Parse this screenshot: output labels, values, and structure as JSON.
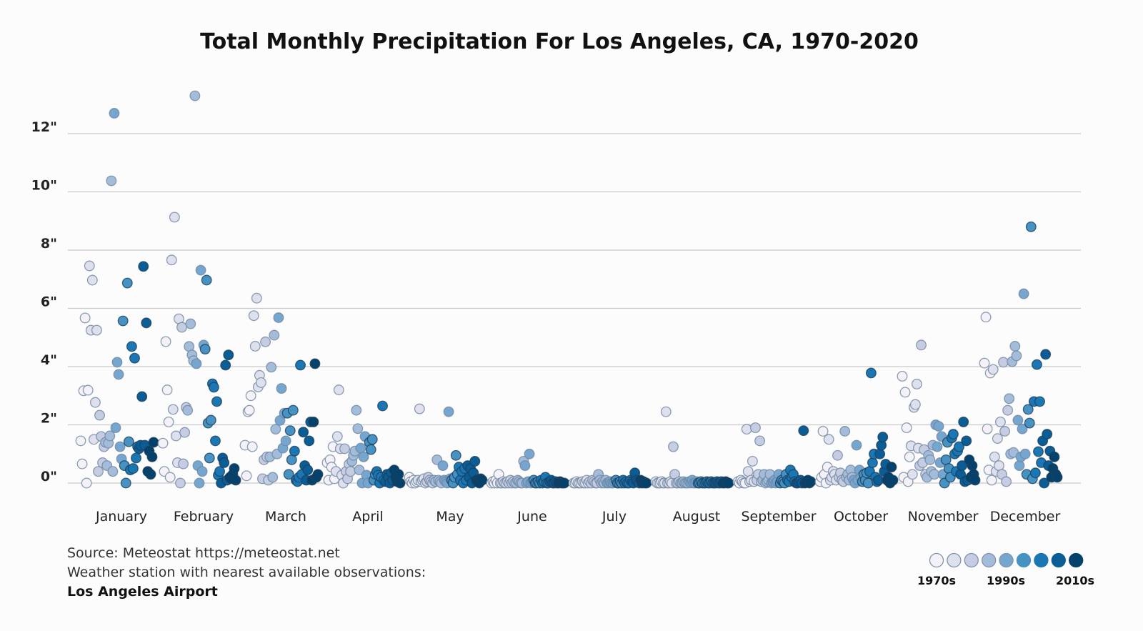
{
  "chart_data": {
    "type": "scatter",
    "title": "Total Monthly Precipitation For Los Angeles, CA, 1970-2020",
    "ylim": [
      0,
      13.5
    ],
    "yticks": [
      0,
      2,
      4,
      6,
      8,
      10,
      12
    ],
    "ytick_labels": [
      "0\"",
      "2\"",
      "4\"",
      "6\"",
      "8\"",
      "10\"",
      "12\""
    ],
    "grid": true,
    "first_year": 1970,
    "categories": [
      "January",
      "February",
      "March",
      "April",
      "May",
      "June",
      "July",
      "August",
      "September",
      "October",
      "November",
      "December"
    ],
    "series": [
      {
        "values": [
          1.45,
          0.66,
          3.17,
          5.67,
          0.0,
          3.19,
          7.46,
          5.25,
          6.97,
          1.5,
          2.77,
          5.25,
          0.4,
          2.33,
          1.6,
          0.7,
          1.25,
          1.4,
          0.6,
          1.37,
          1.62,
          10.38,
          0.4,
          12.7,
          1.9,
          4.15,
          3.73,
          1.25,
          0.83,
          5.57,
          0.6,
          0.0,
          6.87,
          1.42,
          0.45,
          4.69,
          0.5,
          4.29,
          0.86,
          1.25,
          1.18,
          1.3,
          2.97,
          7.44,
          1.3,
          5.5,
          0.4,
          1.1,
          0.3,
          0.9,
          1.4
        ]
      },
      {
        "values": [
          1.37,
          0.4,
          4.86,
          3.2,
          2.1,
          0.2,
          7.66,
          2.53,
          9.13,
          1.62,
          0.7,
          5.64,
          0.0,
          5.35,
          0.66,
          1.74,
          2.6,
          2.5,
          4.69,
          5.47,
          4.4,
          4.2,
          13.3,
          4.1,
          0.6,
          0.0,
          7.31,
          0.4,
          4.74,
          4.6,
          6.97,
          2.06,
          0.86,
          2.16,
          3.41,
          3.29,
          1.45,
          2.8,
          0.27,
          0.4,
          0.0,
          0.86,
          0.7,
          4.05,
          0.1,
          4.4,
          0.2,
          0.15,
          0.3,
          0.5,
          0.1
        ]
      },
      {
        "values": [
          1.3,
          0.25,
          2.45,
          2.5,
          3.0,
          1.25,
          5.75,
          4.7,
          6.35,
          3.3,
          3.7,
          3.45,
          0.15,
          0.8,
          4.85,
          0.9,
          0.1,
          0.9,
          3.98,
          0.2,
          5.08,
          1.85,
          1.0,
          5.68,
          2.15,
          3.25,
          1.2,
          2.4,
          1.45,
          2.4,
          0.3,
          1.8,
          0.8,
          2.5,
          1.1,
          0.1,
          0.05,
          0.2,
          4.05,
          0.3,
          1.75,
          0.6,
          0.1,
          0.45,
          1.45,
          2.1,
          0.1,
          2.1,
          4.1,
          0.2,
          0.3
        ]
      },
      {
        "values": [
          0.7,
          0.1,
          0.8,
          0.55,
          1.25,
          0.15,
          0.4,
          1.6,
          3.2,
          1.18,
          0.27,
          0.0,
          1.18,
          0.4,
          0.15,
          0.65,
          0.4,
          0.75,
          0.95,
          1.1,
          2.5,
          1.87,
          0.45,
          1.2,
          0.0,
          0.9,
          1.6,
          0.27,
          0.0,
          1.4,
          1.15,
          1.5,
          0.1,
          0.3,
          0.4,
          0.27,
          0.0,
          0.2,
          2.65,
          0.1,
          0.05,
          0.3,
          0.2,
          0.0,
          0.35,
          0.1,
          0.45,
          0.2,
          0.05,
          0.3,
          0.0
        ]
      },
      {
        "values": [
          0.2,
          0.05,
          0.0,
          0.1,
          0.0,
          0.05,
          0.1,
          2.55,
          0.05,
          0.1,
          0.15,
          0.0,
          0.05,
          0.2,
          0.1,
          0.05,
          0.0,
          0.1,
          0.05,
          0.8,
          0.1,
          0.05,
          0.0,
          0.6,
          0.1,
          0.05,
          0.0,
          2.45,
          0.15,
          0.1,
          0.0,
          0.2,
          0.95,
          0.3,
          0.55,
          0.1,
          0.4,
          0.0,
          0.5,
          0.1,
          0.6,
          0.2,
          0.5,
          0.0,
          0.35,
          0.75,
          0.1,
          0.05,
          0.0,
          0.15,
          0.1
        ]
      },
      {
        "values": [
          0.0,
          0.05,
          0.0,
          0.1,
          0.0,
          0.3,
          0.0,
          0.0,
          0.05,
          0.0,
          0.0,
          0.05,
          0.0,
          0.1,
          0.0,
          0.05,
          0.0,
          0.0,
          0.1,
          0.05,
          0.0,
          0.0,
          0.75,
          0.6,
          0.0,
          0.05,
          1.0,
          0.0,
          0.05,
          0.1,
          0.0,
          0.0,
          0.05,
          0.0,
          0.1,
          0.0,
          0.05,
          0.2,
          0.0,
          0.0,
          0.05,
          0.1,
          0.0,
          0.0,
          0.05,
          0.0,
          0.0,
          0.05,
          0.0,
          0.0,
          0.0
        ]
      },
      {
        "values": [
          0.0,
          0.0,
          0.05,
          0.0,
          0.0,
          0.0,
          0.05,
          0.0,
          0.0,
          0.1,
          0.0,
          0.05,
          0.0,
          0.1,
          0.05,
          0.0,
          0.0,
          0.3,
          0.1,
          0.0,
          0.05,
          0.0,
          0.1,
          0.0,
          0.0,
          0.05,
          0.0,
          0.0,
          0.05,
          0.1,
          0.0,
          0.0,
          0.05,
          0.0,
          0.1,
          0.0,
          0.05,
          0.0,
          0.0,
          0.1,
          0.05,
          0.0,
          0.35,
          0.1,
          0.05,
          0.0,
          0.1,
          0.0,
          0.05,
          0.0,
          0.0
        ]
      },
      {
        "values": [
          0.05,
          0.0,
          0.0,
          0.0,
          0.05,
          0.0,
          0.0,
          2.45,
          0.0,
          0.0,
          0.05,
          0.0,
          1.25,
          0.3,
          0.0,
          0.0,
          0.05,
          0.0,
          0.0,
          0.05,
          0.0,
          0.0,
          0.0,
          0.05,
          0.0,
          0.1,
          0.0,
          0.0,
          0.05,
          0.0,
          0.0,
          0.05,
          0.0,
          0.0,
          0.0,
          0.05,
          0.0,
          0.0,
          0.05,
          0.0,
          0.0,
          0.0,
          0.05,
          0.0,
          0.0,
          0.05,
          0.0,
          0.0,
          0.05,
          0.0,
          0.0
        ]
      },
      {
        "values": [
          0.05,
          0.0,
          0.1,
          0.05,
          0.0,
          0.0,
          1.85,
          0.4,
          0.05,
          0.1,
          0.75,
          0.05,
          1.9,
          0.1,
          0.3,
          1.45,
          0.05,
          0.1,
          0.3,
          0.0,
          0.05,
          0.1,
          0.3,
          0.0,
          0.05,
          0.1,
          0.0,
          0.05,
          0.3,
          0.0,
          0.1,
          0.05,
          0.0,
          0.3,
          0.1,
          0.05,
          0.45,
          0.2,
          0.3,
          0.05,
          0.0,
          0.0,
          0.05,
          0.1,
          0.0,
          1.8,
          0.0,
          0.05,
          0.1,
          0.0,
          0.05
        ]
      },
      {
        "values": [
          0.05,
          0.2,
          1.78,
          0.3,
          0.0,
          0.55,
          1.5,
          0.1,
          0.2,
          0.4,
          0.3,
          0.1,
          0.95,
          0.2,
          0.35,
          0.1,
          0.05,
          1.78,
          0.2,
          0.3,
          0.1,
          0.45,
          0.2,
          0.1,
          0.0,
          1.3,
          0.1,
          0.45,
          0.2,
          0.05,
          0.3,
          0.1,
          0.35,
          0.0,
          0.4,
          3.78,
          0.7,
          1.0,
          0.2,
          0.05,
          0.1,
          1.0,
          1.3,
          1.58,
          0.4,
          0.65,
          0.1,
          0.2,
          0.0,
          0.55,
          0.1
        ]
      },
      {
        "values": [
          3.67,
          0.2,
          3.12,
          1.9,
          0.05,
          0.9,
          1.28,
          0.3,
          2.6,
          2.7,
          3.4,
          1.2,
          0.6,
          4.74,
          0.7,
          1.15,
          0.3,
          0.2,
          0.95,
          0.8,
          0.4,
          1.3,
          0.3,
          2.0,
          1.25,
          1.95,
          0.7,
          1.6,
          0.3,
          0.0,
          0.8,
          1.4,
          0.5,
          0.2,
          1.55,
          1.68,
          1.0,
          0.4,
          1.1,
          1.25,
          0.3,
          0.6,
          2.1,
          0.05,
          1.45,
          0.1,
          0.8,
          0.2,
          0.6,
          0.3,
          0.1
        ]
      },
      {
        "values": [
          4.12,
          5.7,
          1.86,
          0.45,
          3.78,
          0.1,
          3.9,
          0.9,
          0.4,
          1.53,
          0.6,
          2.1,
          0.3,
          4.15,
          1.78,
          0.05,
          2.5,
          2.9,
          1.0,
          4.17,
          1.05,
          4.7,
          4.37,
          2.16,
          0.6,
          0.9,
          1.86,
          6.5,
          1.0,
          0.3,
          2.53,
          2.06,
          8.8,
          0.15,
          2.8,
          0.35,
          4.07,
          1.08,
          2.8,
          0.7,
          1.45,
          0.0,
          4.42,
          1.68,
          0.6,
          1.1,
          0.2,
          0.5,
          0.9,
          0.3,
          0.2
        ]
      }
    ],
    "color_scale": [
      "#f4f2f8",
      "#dfe0ee",
      "#c6cde3",
      "#a3bcda",
      "#75a6cf",
      "#4592c3",
      "#1a77b3",
      "#0a5d95",
      "#04426b"
    ],
    "legend": {
      "placement": "bottom-right",
      "labels": [
        "1970s",
        "1990s",
        "2010s"
      ]
    }
  },
  "footer": {
    "source": "Source: Meteostat https://meteostat.net",
    "station_note": "Weather station with nearest available observations:",
    "station": "Los Angeles Airport"
  }
}
